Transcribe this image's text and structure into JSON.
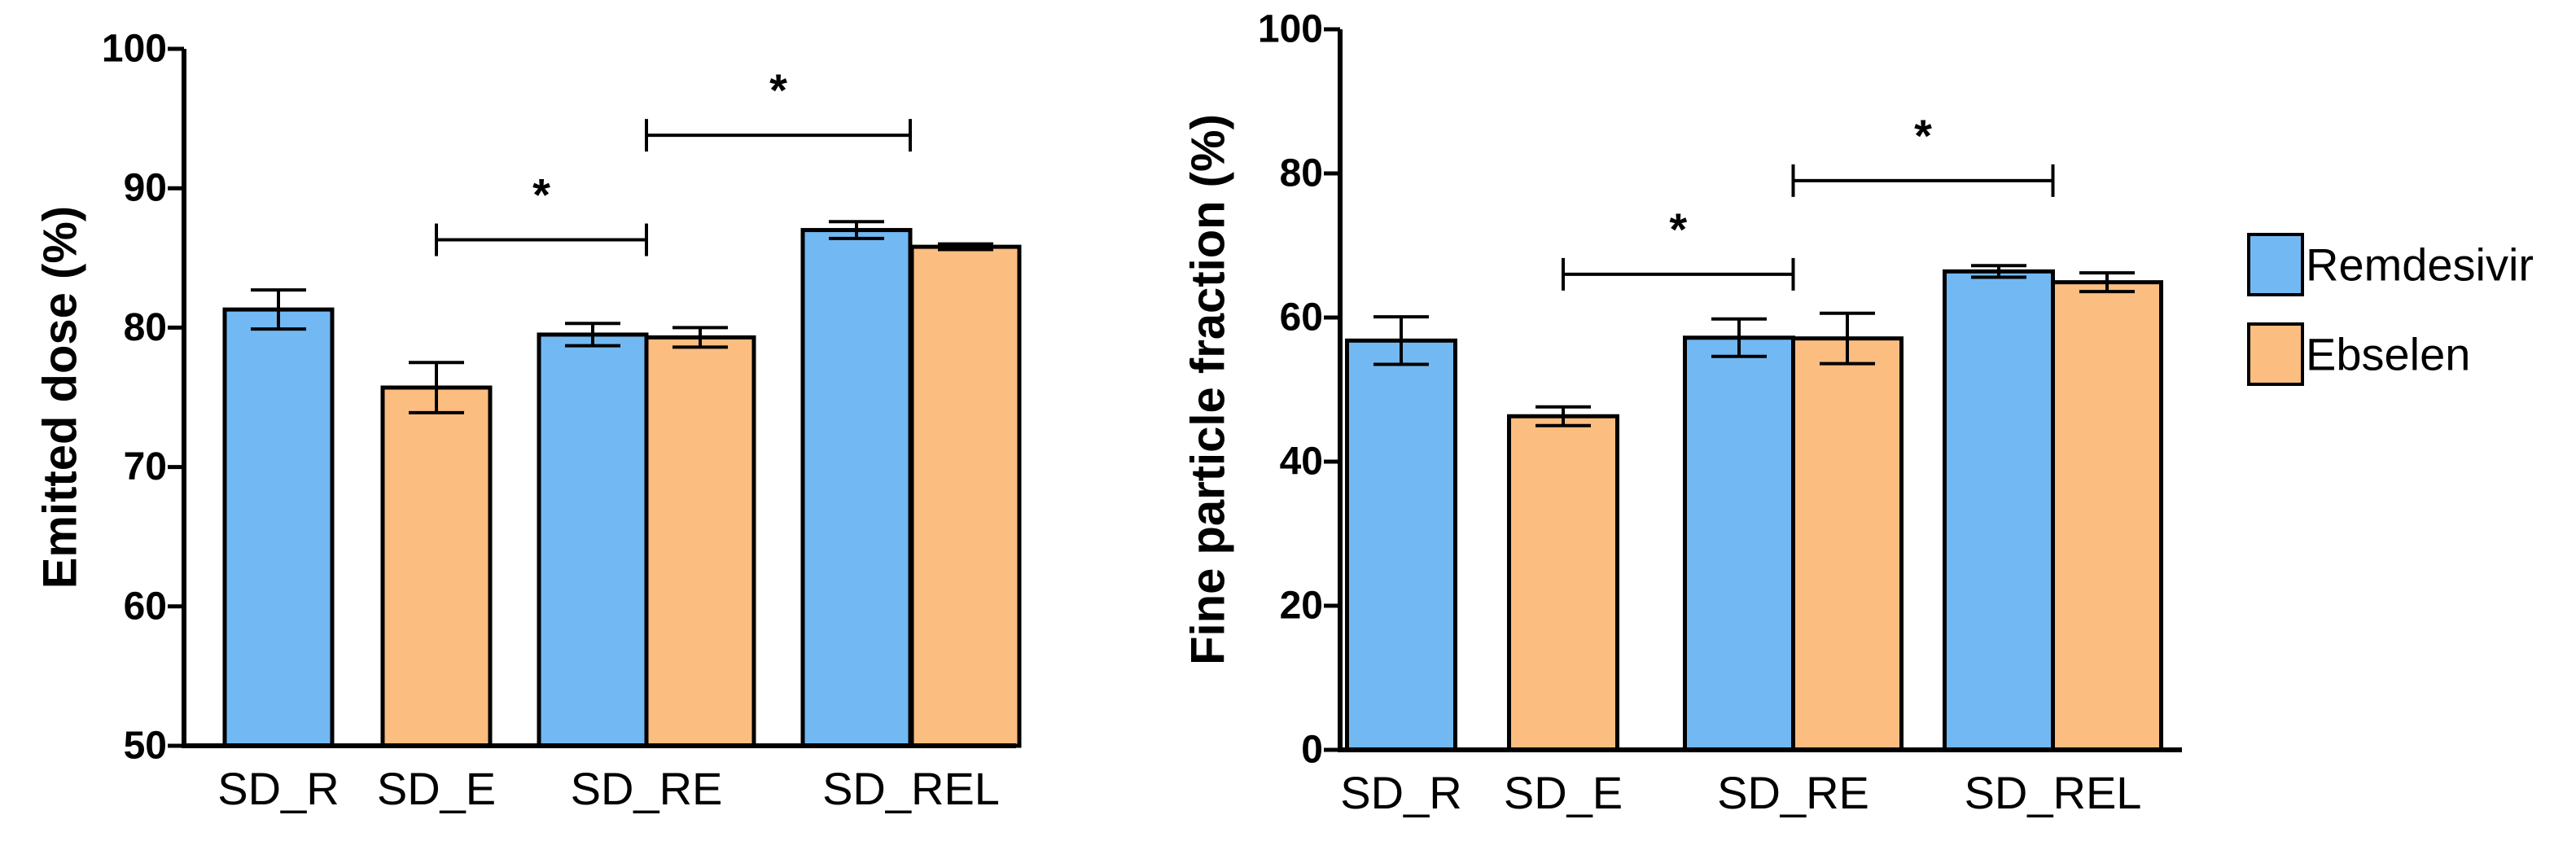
{
  "colors": {
    "remdesivir": "#72b9f3",
    "ebselen": "#fbbd80",
    "axis": "#000000"
  },
  "legend": {
    "items": [
      {
        "label": "Remdesivir",
        "color": "#72b9f3"
      },
      {
        "label": "Ebselen",
        "color": "#fbbd80"
      }
    ]
  },
  "chart_data": [
    {
      "type": "bar",
      "ylabel": "Emitted dose (%)",
      "xlabel": "",
      "ylim": [
        50,
        100
      ],
      "yticks": [
        50,
        60,
        70,
        80,
        90,
        100
      ],
      "groups": [
        {
          "label": "SD_R",
          "bars": [
            {
              "series": "Remdesivir",
              "value": 81.3,
              "err": 1.4
            }
          ]
        },
        {
          "label": "SD_E",
          "bars": [
            {
              "series": "Ebselen",
              "value": 75.7,
              "err": 1.8
            }
          ]
        },
        {
          "label": "SD_RE",
          "bars": [
            {
              "series": "Remdesivir",
              "value": 79.5,
              "err": 0.8
            },
            {
              "series": "Ebselen",
              "value": 79.3,
              "err": 0.7
            }
          ]
        },
        {
          "label": "SD_REL",
          "bars": [
            {
              "series": "Remdesivir",
              "value": 87.0,
              "err": 0.6
            },
            {
              "series": "Ebselen",
              "value": 85.8,
              "err": 0.2
            }
          ]
        }
      ],
      "significance": [
        {
          "label": "*",
          "from_group": 1,
          "to_group": 2,
          "y": 86.3
        },
        {
          "label": "*",
          "from_group": 2,
          "to_group": 3,
          "y": 93.8
        }
      ]
    },
    {
      "type": "bar",
      "ylabel": "Fine particle fraction (%)",
      "xlabel": "",
      "ylim": [
        0,
        100
      ],
      "yticks": [
        0,
        20,
        40,
        60,
        80,
        100
      ],
      "groups": [
        {
          "label": "SD_R",
          "bars": [
            {
              "series": "Remdesivir",
              "value": 56.8,
              "err": 3.3
            }
          ]
        },
        {
          "label": "SD_E",
          "bars": [
            {
              "series": "Ebselen",
              "value": 46.3,
              "err": 1.3
            }
          ]
        },
        {
          "label": "SD_RE",
          "bars": [
            {
              "series": "Remdesivir",
              "value": 57.2,
              "err": 2.6
            },
            {
              "series": "Ebselen",
              "value": 57.1,
              "err": 3.5
            }
          ]
        },
        {
          "label": "SD_REL",
          "bars": [
            {
              "series": "Remdesivir",
              "value": 66.4,
              "err": 0.8
            },
            {
              "series": "Ebselen",
              "value": 64.9,
              "err": 1.3
            }
          ]
        }
      ],
      "significance": [
        {
          "label": "*",
          "from_group": 1,
          "to_group": 2,
          "y": 66
        },
        {
          "label": "*",
          "from_group": 2,
          "to_group": 3,
          "y": 79
        }
      ]
    }
  ]
}
